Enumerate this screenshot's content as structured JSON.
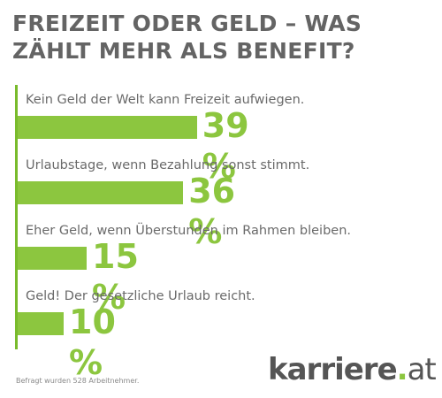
{
  "title": "FREIZEIT ODER GELD – WAS ZÄHLT MEHR ALS BENEFIT?",
  "colors": {
    "bar": "#8cc63f",
    "axis": "#79bb2c",
    "title": "#646464",
    "label": "#6a6a6a",
    "logo": "#555555"
  },
  "chart_data": {
    "type": "bar",
    "orientation": "horizontal",
    "title": "FREIZEIT ODER GELD – WAS ZÄHLT MEHR ALS BENEFIT?",
    "xlabel": "",
    "ylabel": "",
    "unit": "%",
    "xlim": [
      0,
      100
    ],
    "grid": false,
    "legend": "none",
    "categories": [
      "Kein Geld der Welt kann Freizeit aufwiegen.",
      "Urlaubstage, wenn Bezahlung sonst stimmt.",
      "Eher Geld, wenn Überstunden im Rahmen bleiben.",
      "Geld! Der gesetzliche Urlaub reicht."
    ],
    "values": [
      39,
      36,
      15,
      10
    ],
    "value_labels": [
      "39 %",
      "36 %",
      "15 %",
      "10 %"
    ]
  },
  "footnote": "Befragt wurden 528 Arbeitnehmer.",
  "logo": {
    "brand": "karriere",
    "dot": ".",
    "tld": "at"
  }
}
